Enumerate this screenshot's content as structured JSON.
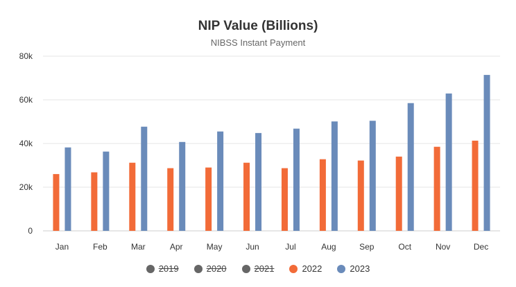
{
  "chart_data": {
    "type": "bar",
    "title": "NIP Value (Billions)",
    "subtitle": "NIBSS Instant Payment",
    "xlabel": "",
    "ylabel": "",
    "categories": [
      "Jan",
      "Feb",
      "Mar",
      "Apr",
      "May",
      "Jun",
      "Jul",
      "Aug",
      "Sep",
      "Oct",
      "Nov",
      "Dec"
    ],
    "ylim": [
      0,
      80000
    ],
    "yticks": [
      0,
      20000,
      40000,
      60000,
      80000
    ],
    "ytick_labels": [
      "0",
      "20k",
      "40k",
      "60k",
      "80k"
    ],
    "grid": true,
    "legend_position": "bottom",
    "legend": [
      {
        "name": "2019",
        "color": "#666666",
        "hidden": true
      },
      {
        "name": "2020",
        "color": "#666666",
        "hidden": true
      },
      {
        "name": "2021",
        "color": "#666666",
        "hidden": true
      },
      {
        "name": "2022",
        "color": "#f26b38",
        "hidden": false
      },
      {
        "name": "2023",
        "color": "#6a8bba",
        "hidden": false
      }
    ],
    "series": [
      {
        "name": "2022",
        "color": "#f26b38",
        "values": [
          26000,
          26800,
          31200,
          28700,
          29000,
          31200,
          28700,
          32800,
          32200,
          34000,
          38500,
          41300
        ]
      },
      {
        "name": "2023",
        "color": "#6a8bba",
        "values": [
          38200,
          36300,
          47700,
          40700,
          45500,
          44800,
          46800,
          50100,
          50400,
          58500,
          62900,
          71400
        ]
      }
    ]
  }
}
